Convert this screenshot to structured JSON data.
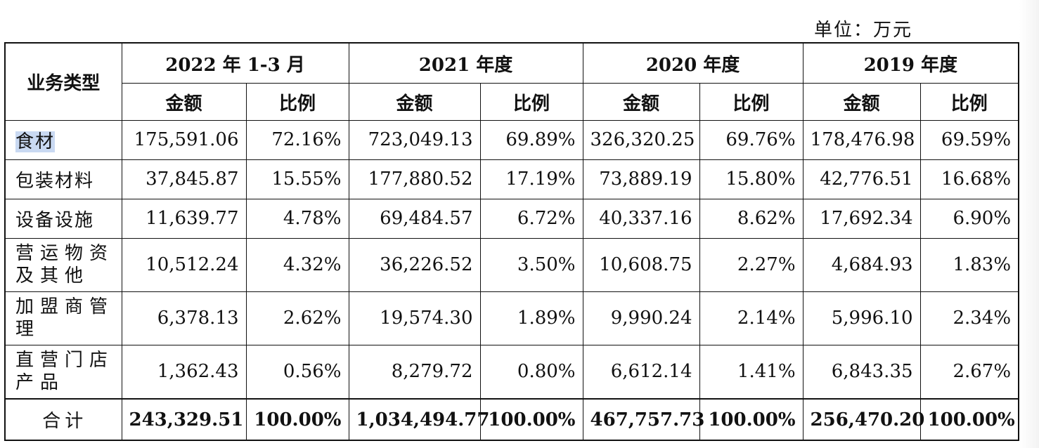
{
  "unit_label": "单位：万元",
  "header": {
    "category": "业务类型",
    "periods": [
      "2022 年 1-3 月",
      "2021 年度",
      "2020 年度",
      "2019 年度"
    ],
    "amount": "金额",
    "ratio": "比例"
  },
  "rows": [
    {
      "label": "食材",
      "values": [
        "175,591.06",
        "72.16%",
        "723,049.13",
        "69.89%",
        "326,320.25",
        "69.76%",
        "178,476.98",
        "69.59%"
      ]
    },
    {
      "label": "包装材料",
      "values": [
        "37,845.87",
        "15.55%",
        "177,880.52",
        "17.19%",
        "73,889.19",
        "15.80%",
        "42,776.51",
        "16.68%"
      ]
    },
    {
      "label": "设备设施",
      "values": [
        "11,639.77",
        "4.78%",
        "69,484.57",
        "6.72%",
        "40,337.16",
        "8.62%",
        "17,692.34",
        "6.90%"
      ]
    },
    {
      "label": "营运物资及其他",
      "values": [
        "10,512.24",
        "4.32%",
        "36,226.52",
        "3.50%",
        "10,608.75",
        "2.27%",
        "4,684.93",
        "1.83%"
      ]
    },
    {
      "label": "加盟商管理",
      "values": [
        "6,378.13",
        "2.62%",
        "19,574.30",
        "1.89%",
        "9,990.24",
        "2.14%",
        "5,996.10",
        "2.34%"
      ]
    },
    {
      "label": "直营门店产品",
      "values": [
        "1,362.43",
        "0.56%",
        "8,279.72",
        "0.80%",
        "6,612.14",
        "1.41%",
        "6,843.35",
        "2.67%"
      ]
    }
  ],
  "total": {
    "label": "合计",
    "values": [
      "243,329.51",
      "100.00%",
      "1,034,494.77",
      "100.00%",
      "467,757.73",
      "100.00%",
      "256,470.20",
      "100.00%"
    ]
  }
}
